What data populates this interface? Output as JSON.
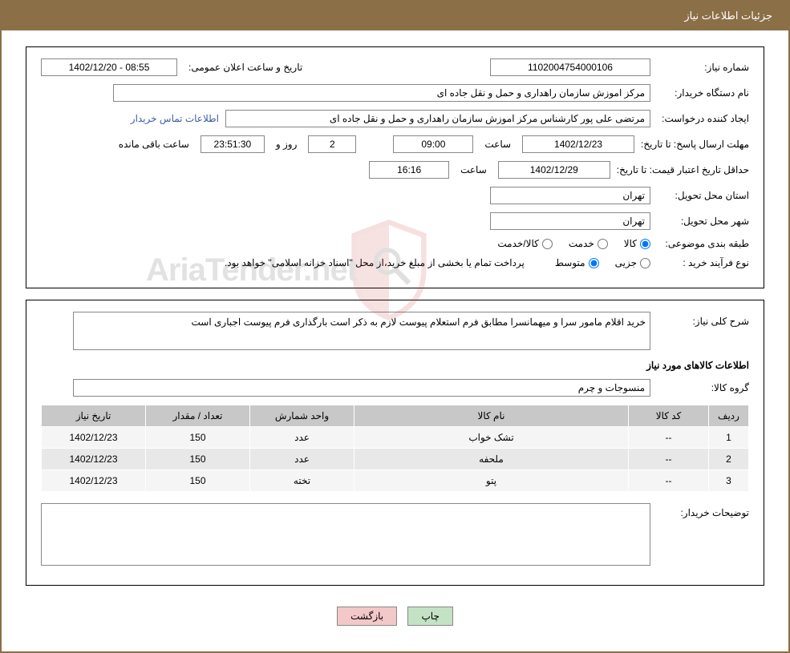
{
  "page_title": "جزئیات اطلاعات نیاز",
  "labels": {
    "need_number": "شماره نیاز:",
    "announce_datetime": "تاریخ و ساعت اعلان عمومی:",
    "buyer_org": "نام دستگاه خریدار:",
    "requester": "ایجاد کننده درخواست:",
    "buyer_contact": "اطلاعات تماس خریدار",
    "deadline_send": "مهلت ارسال پاسخ: تا تاریخ:",
    "time": "ساعت",
    "days": "روز و",
    "remaining": "ساعت باقی مانده",
    "min_validity": "حداقل تاریخ اعتبار قیمت: تا تاریخ:",
    "delivery_province": "استان محل تحویل:",
    "delivery_city": "شهر محل تحویل:",
    "subject_class": "طبقه بندی موضوعی:",
    "purchase_type": "نوع فرآیند خرید :",
    "purchase_note": "پرداخت تمام یا بخشی از مبلغ خرید،از محل \"اسناد خزانه اسلامی\" خواهد بود.",
    "need_summary": "شرح کلی نیاز:",
    "goods_info": "اطلاعات کالاهای مورد نیاز",
    "goods_group": "گروه کالا:",
    "buyer_desc": "توضیحات خریدار:"
  },
  "values": {
    "need_number": "1102004754000106",
    "announce_datetime": "08:55 - 1402/12/20",
    "buyer_org": "مرکز اموزش سازمان راهداری و حمل و نقل جاده ای",
    "requester": "مرتضی علی پور کارشناس مرکز اموزش سازمان راهداری و حمل و نقل جاده ای",
    "deadline_date": "1402/12/23",
    "deadline_time": "09:00",
    "remaining_days": "2",
    "remaining_time": "23:51:30",
    "validity_date": "1402/12/29",
    "validity_time": "16:16",
    "province": "تهران",
    "city": "تهران",
    "summary": "خرید اقلام مامور سرا و میهمانسرا مطابق فرم استعلام پیوست لازم به ذکر است بارگذاری فرم پیوست اجباری است",
    "goods_group": "منسوجات و چرم",
    "buyer_desc": ""
  },
  "radio_subject": {
    "goods": "کالا",
    "service": "خدمت",
    "goods_service": "کالا/خدمت"
  },
  "radio_purchase": {
    "partial": "جزیی",
    "medium": "متوسط"
  },
  "table": {
    "columns": {
      "row": "ردیف",
      "code": "کد کالا",
      "name": "نام کالا",
      "unit": "واحد شمارش",
      "qty": "تعداد / مقدار",
      "date": "تاریخ نیاز"
    },
    "rows": [
      {
        "row": "1",
        "code": "--",
        "name": "تشک خواب",
        "unit": "عدد",
        "qty": "150",
        "date": "1402/12/23"
      },
      {
        "row": "2",
        "code": "--",
        "name": "ملحفه",
        "unit": "عدد",
        "qty": "150",
        "date": "1402/12/23"
      },
      {
        "row": "3",
        "code": "--",
        "name": "پتو",
        "unit": "تخته",
        "qty": "150",
        "date": "1402/12/23"
      }
    ]
  },
  "buttons": {
    "print": "چاپ",
    "back": "بازگشت"
  },
  "watermark": "AriaTender.net"
}
